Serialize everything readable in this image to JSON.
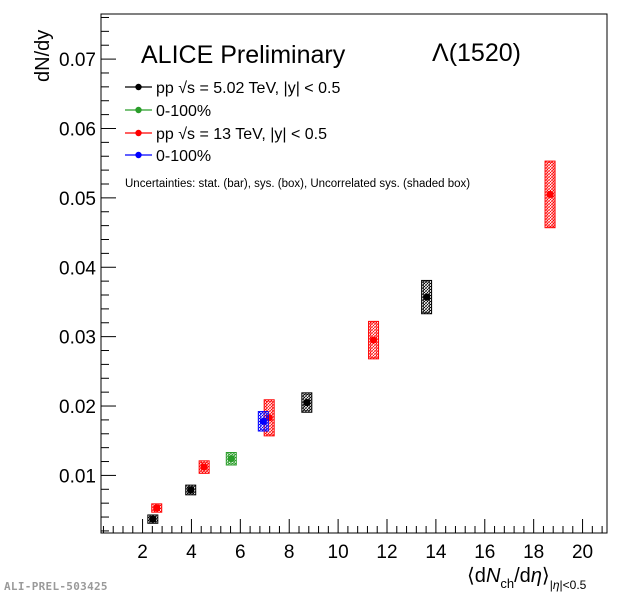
{
  "chart_data": {
    "type": "scatter",
    "experiment_label": "ALICE Preliminary",
    "particle_label": "Λ(1520)",
    "ylabel": "dN/dy",
    "xlabel": "⟨dN_ch/dη⟩_|η|<0.5",
    "xlim": [
      0.3,
      21
    ],
    "ylim": [
      0.0017,
      0.0765
    ],
    "x_ticks": [
      2,
      4,
      6,
      8,
      10,
      12,
      14,
      16,
      18,
      20
    ],
    "y_ticks": [
      0.01,
      0.02,
      0.03,
      0.04,
      0.05,
      0.06,
      0.07
    ],
    "note": "Uncertainties: stat. (bar), sys. (box), Uncorrelated sys. (shaded box)",
    "series": [
      {
        "name": "pp √s = 5.02 TeV, |y| < 0.5",
        "color": "#000000",
        "points": [
          {
            "x": 2.42,
            "y": 0.0037,
            "sys": 0.0006
          },
          {
            "x": 3.97,
            "y": 0.0079,
            "sys": 0.0007
          },
          {
            "x": 8.72,
            "y": 0.0205,
            "sys": 0.0014
          },
          {
            "x": 13.62,
            "y": 0.0357,
            "sys": 0.0024
          }
        ]
      },
      {
        "name": "0-100%",
        "color": "#2a9d2a",
        "points": [
          {
            "x": 5.63,
            "y": 0.0124,
            "sys": 0.0009
          }
        ]
      },
      {
        "name": "pp √s = 13 TeV, |y| < 0.5",
        "color": "#ff0000",
        "points": [
          {
            "x": 2.58,
            "y": 0.0053,
            "sys": 0.0006
          },
          {
            "x": 4.52,
            "y": 0.0112,
            "sys": 0.0009
          },
          {
            "x": 7.18,
            "y": 0.0183,
            "sys": 0.0026
          },
          {
            "x": 11.45,
            "y": 0.0295,
            "sys": 0.0027
          },
          {
            "x": 18.67,
            "y": 0.0505,
            "sys": 0.0048
          }
        ]
      },
      {
        "name": "0-100%",
        "color": "#0000ff",
        "points": [
          {
            "x": 6.94,
            "y": 0.0178,
            "sys": 0.0014
          }
        ]
      }
    ],
    "footer": "ALI-PREL-503425"
  }
}
